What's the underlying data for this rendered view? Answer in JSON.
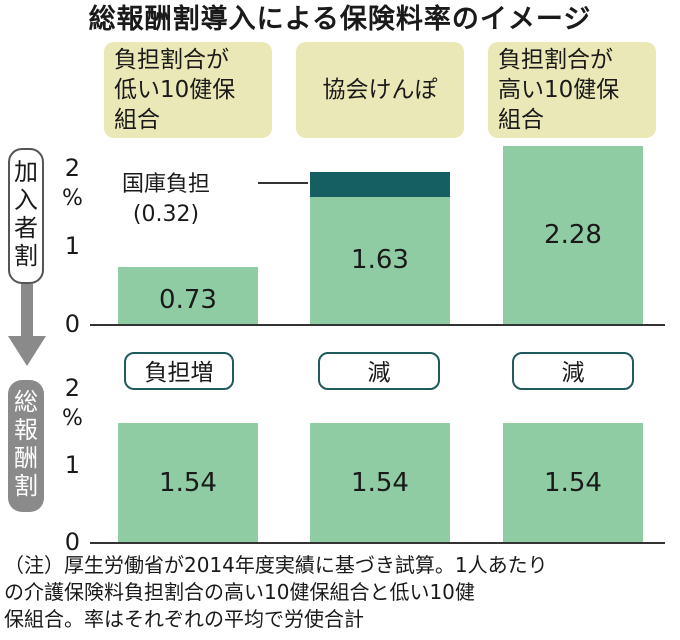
{
  "title": "総報酬割導入による保険料率のイメージ",
  "groups": [
    {
      "header": "負担割合が\n低い10健保\n組合",
      "change": "負担増"
    },
    {
      "header": "協会けんぽ",
      "change": "減"
    },
    {
      "header": "負担割合が\n高い10健保\n組合",
      "change": "減"
    }
  ],
  "panel_labels": {
    "top": "加\n入\n者\n割",
    "bottom": "総\n報\n酬\n割"
  },
  "annotation": {
    "name": "国庫負担",
    "value": "(0.32)"
  },
  "note": "（注）厚生労働省が2014年度実績に基づき試算。1人あたり\nの介護保険料負担割合の高い10健保組合と低い10健\n保組合。率はそれぞれの平均で労使合計",
  "chart_data": [
    {
      "type": "bar",
      "panel": "加入者割",
      "categories": [
        "負担割合が低い10健保組合",
        "協会けんぽ",
        "負担割合が高い10健保組合"
      ],
      "values": [
        0.73,
        1.63,
        2.28
      ],
      "value_labels": [
        "0.73",
        "1.63",
        "2.28"
      ],
      "stack_top": {
        "category": "協会けんぽ",
        "name": "国庫負担",
        "value": 0.32
      },
      "ylim": [
        0,
        2.4
      ],
      "yticks": [
        {
          "v": 0,
          "label": "0"
        },
        {
          "v": 1,
          "label": "1"
        },
        {
          "v": 2,
          "label": "2"
        }
      ],
      "unit": "%",
      "colors": {
        "bar": "#8fcca3",
        "stack_top": "#155f63"
      }
    },
    {
      "type": "bar",
      "panel": "総報酬割",
      "categories": [
        "負担割合が低い10健保組合",
        "協会けんぽ",
        "負担割合が高い10健保組合"
      ],
      "values": [
        1.54,
        1.54,
        1.54
      ],
      "value_labels": [
        "1.54",
        "1.54",
        "1.54"
      ],
      "ylim": [
        0,
        2.4
      ],
      "yticks": [
        {
          "v": 0,
          "label": "0"
        },
        {
          "v": 1,
          "label": "1"
        },
        {
          "v": 2,
          "label": "2"
        }
      ],
      "unit": "%",
      "colors": {
        "bar": "#8fcca3"
      }
    }
  ]
}
